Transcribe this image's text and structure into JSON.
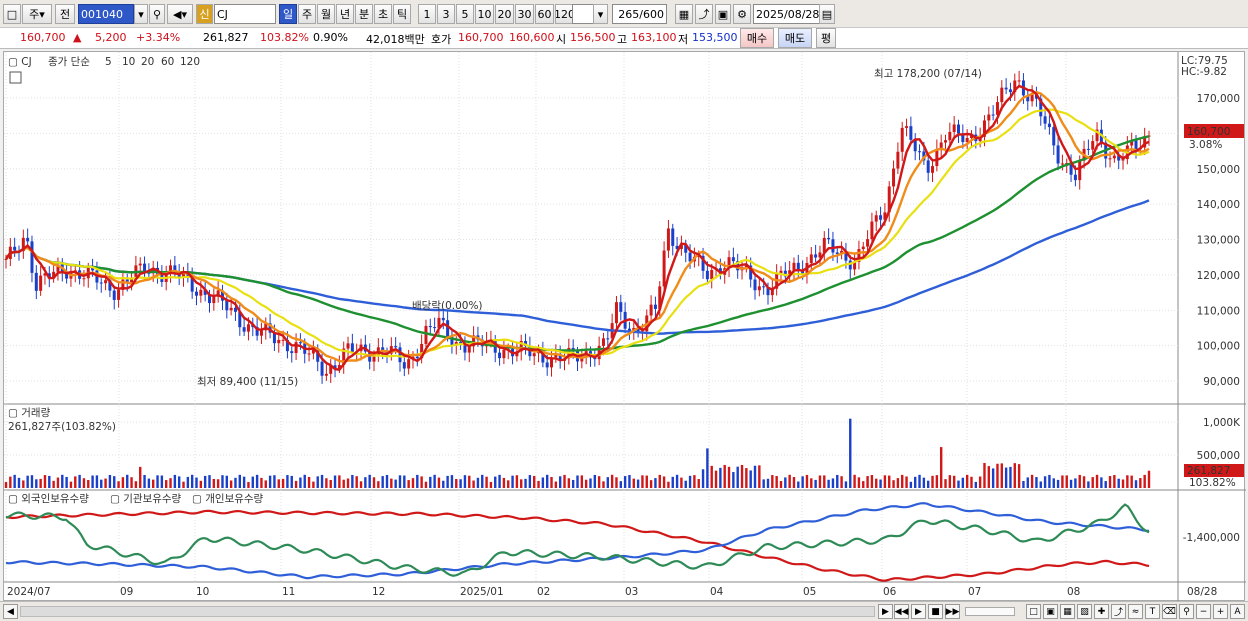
{
  "toolbar": {
    "period_labels": [
      "주",
      "전"
    ],
    "stock_code": "001040",
    "stock_market_badge": "신",
    "stock_name": "CJ",
    "timeframes": [
      "일",
      "주",
      "월",
      "년",
      "분",
      "초",
      "틱"
    ],
    "active_timeframe": "일",
    "intervals": [
      "1",
      "3",
      "5",
      "10",
      "20",
      "30",
      "60",
      "120"
    ],
    "bar_count": "265",
    "bar_total": "/600",
    "date": "2025/08/28",
    "buy_label": "매수",
    "sell_label": "매도",
    "eval_label": "평"
  },
  "quote": {
    "price": "160,700",
    "change": "5,200",
    "change_pct": "+3.34%",
    "volume": "261,827",
    "volume_ratio": "103.82%",
    "turnover_ratio": "0.90%",
    "amount": "42,018백만",
    "bid_label": "호가",
    "bid1": "160,700",
    "bid2": "160,600",
    "open_label": "시",
    "open": "156,500",
    "high_label": "고",
    "high": "163,100",
    "low_label": "저",
    "low": "153,500"
  },
  "price_panel": {
    "legend_name": "CJ",
    "legend_text": "종가 단순",
    "ma_labels": [
      "5",
      "10",
      "20",
      "60",
      "120"
    ],
    "ma_colors": [
      "#d01818",
      "#f08c1a",
      "#e8e010",
      "#1e9030",
      "#2f5fd8"
    ],
    "lc": "LC:79.75",
    "hc": "HC:-9.82",
    "yticks": [
      "170,000",
      "160,000",
      "150,000",
      "140,000",
      "130,000",
      "120,000",
      "110,000",
      "100,000",
      "90,000"
    ],
    "last_price": "160,700",
    "last_pct": "3.08%",
    "max_label": "최고 178,200 (07/14)",
    "min_label": "최저 89,400 (11/15)",
    "dividend_label": "배당락(0.00%)"
  },
  "volume_panel": {
    "title": "거래량",
    "value": "261,827주(103.82%)",
    "yticks": [
      "1,000K",
      "500,000"
    ],
    "last_value": "261,827",
    "last_pct": "103.82%"
  },
  "holdings_panel": {
    "series": [
      "외국인보유수량",
      "기관보유수량",
      "개인보유수량"
    ],
    "colors": [
      "#d01818",
      "#2f5fd8",
      "#2e8b57"
    ],
    "ytick": "-1,400,000"
  },
  "x_axis": [
    "2024/07",
    "09",
    "10",
    "11",
    "12",
    "2025/01",
    "02",
    "03",
    "04",
    "05",
    "06",
    "07",
    "08",
    "08/28"
  ]
}
